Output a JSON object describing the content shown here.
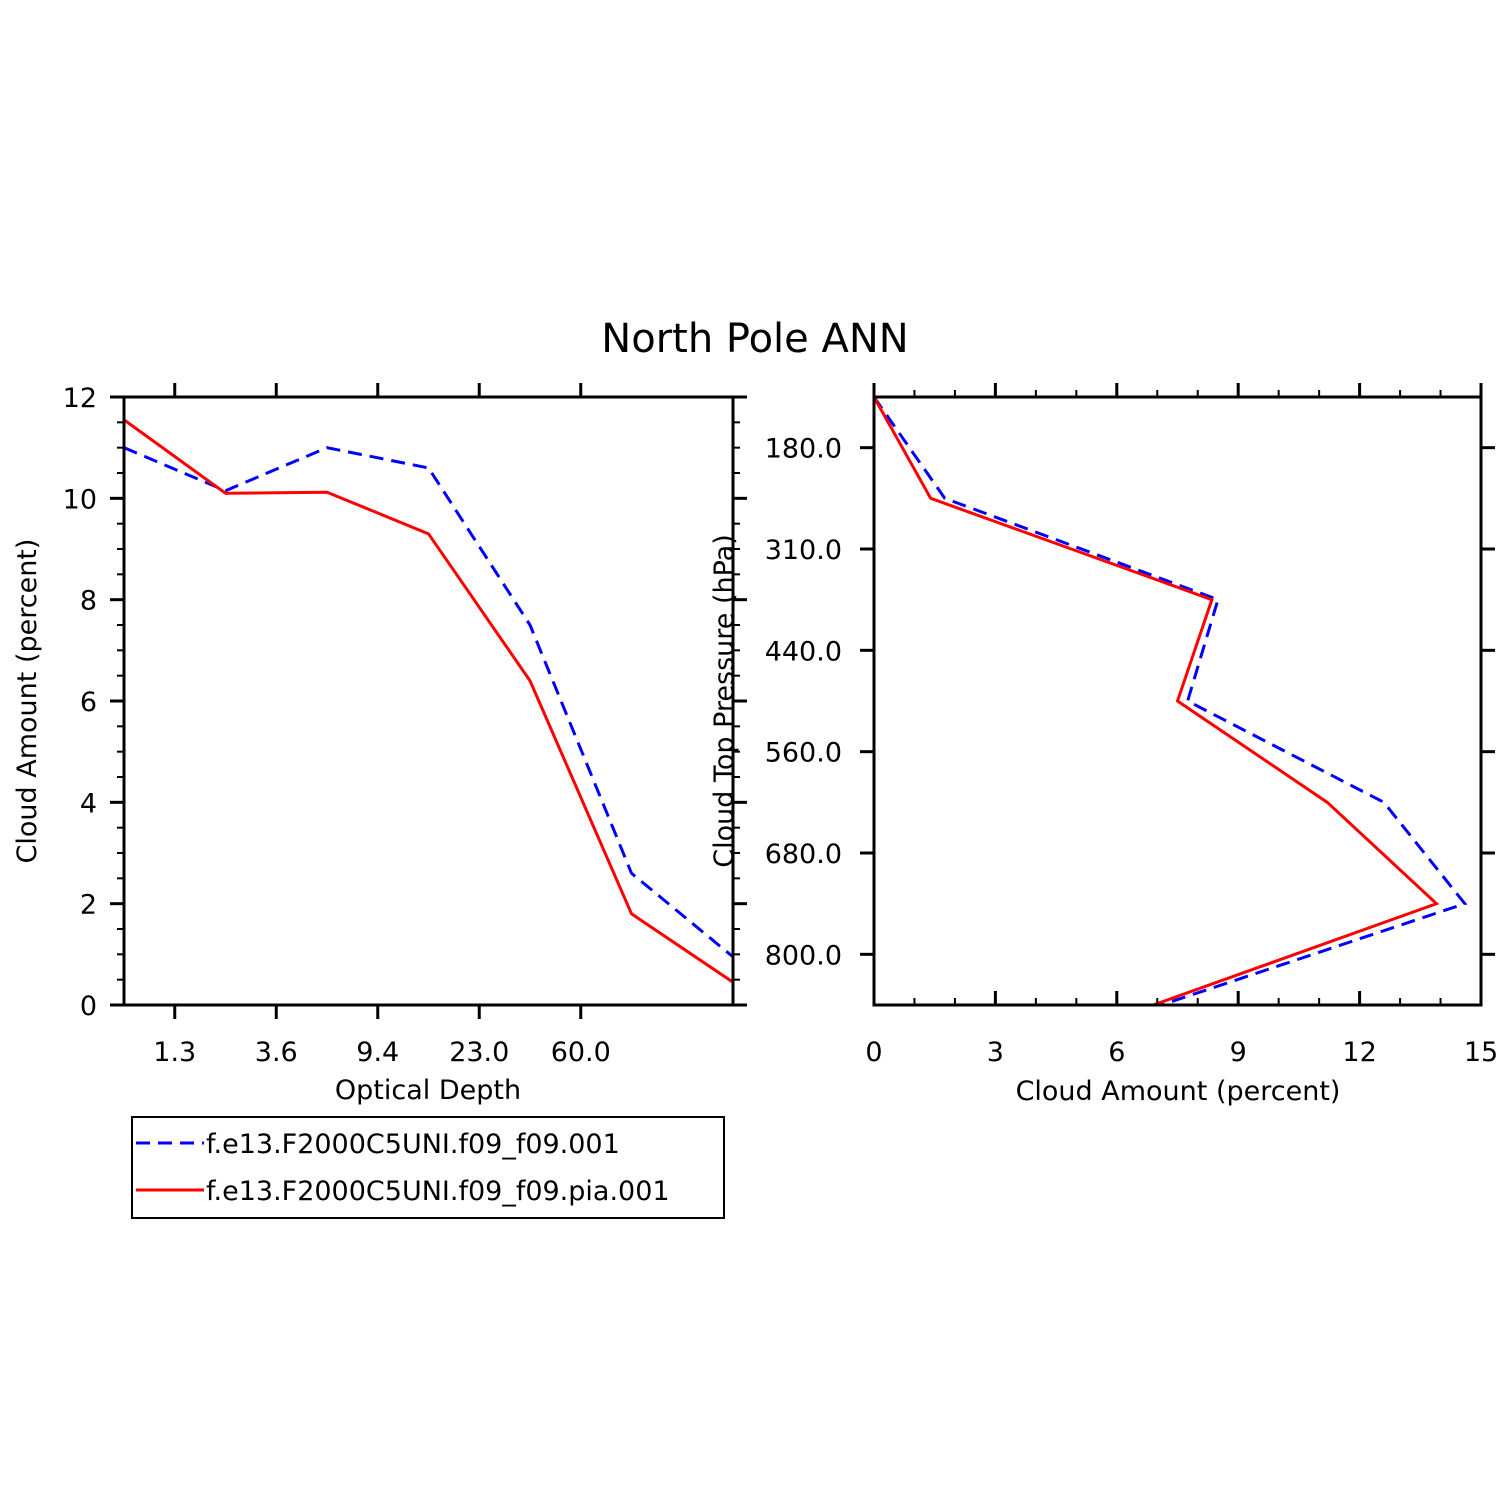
{
  "figure_title": "North Pole ANN",
  "colors": {
    "series_1": "#0000ff",
    "series_2": "#ff0000",
    "axis": "#000000"
  },
  "legend": [
    {
      "label": "f.e13.F2000C5UNI.f09_f09.001",
      "style": "dashed",
      "color": "#0000ff"
    },
    {
      "label": "f.e13.F2000C5UNI.f09_f09.pia.001",
      "style": "solid",
      "color": "#ff0000"
    }
  ],
  "chart_data": [
    {
      "type": "line",
      "title": "",
      "xlabel": "Optical Depth",
      "ylabel": "Cloud Amount (percent)",
      "x_tick_labels": [
        "1.3",
        "3.6",
        "9.4",
        "23.0",
        "60.0"
      ],
      "y_ticks": [
        0,
        2,
        4,
        6,
        8,
        10,
        12
      ],
      "ylim": [
        0,
        12
      ],
      "x_bins": 7,
      "x_bin_positions": [
        0,
        1,
        2,
        3,
        4,
        5,
        6
      ],
      "grid": false,
      "series": [
        {
          "name": "f.e13.F2000C5UNI.f09_f09.001",
          "style": "dashed",
          "color": "#0000ff",
          "values": [
            11.0,
            10.15,
            11.0,
            10.6,
            7.5,
            2.6,
            0.95
          ]
        },
        {
          "name": "f.e13.F2000C5UNI.f09_f09.pia.001",
          "style": "solid",
          "color": "#ff0000",
          "values": [
            11.55,
            10.1,
            10.12,
            9.3,
            6.4,
            1.8,
            0.45
          ]
        }
      ]
    },
    {
      "type": "line",
      "title": "",
      "xlabel": "Cloud Amount (percent)",
      "ylabel": "Cloud Top Pressure (hPa)",
      "x_ticks": [
        0,
        3,
        6,
        9,
        12,
        15
      ],
      "xlim": [
        0,
        15
      ],
      "y_tick_labels": [
        "180.0",
        "310.0",
        "440.0",
        "560.0",
        "680.0",
        "800.0"
      ],
      "y_levels": 6,
      "grid": false,
      "series": [
        {
          "name": "f.e13.F2000C5UNI.f09_f09.001",
          "style": "dashed",
          "color": "#0000ff",
          "values": [
            0.0,
            1.75,
            8.5,
            7.75,
            12.6,
            14.6,
            7.1
          ]
        },
        {
          "name": "f.e13.F2000C5UNI.f09_f09.pia.001",
          "style": "solid",
          "color": "#ff0000",
          "values": [
            0.0,
            1.4,
            8.35,
            7.5,
            11.2,
            13.9,
            6.9
          ]
        }
      ]
    }
  ]
}
